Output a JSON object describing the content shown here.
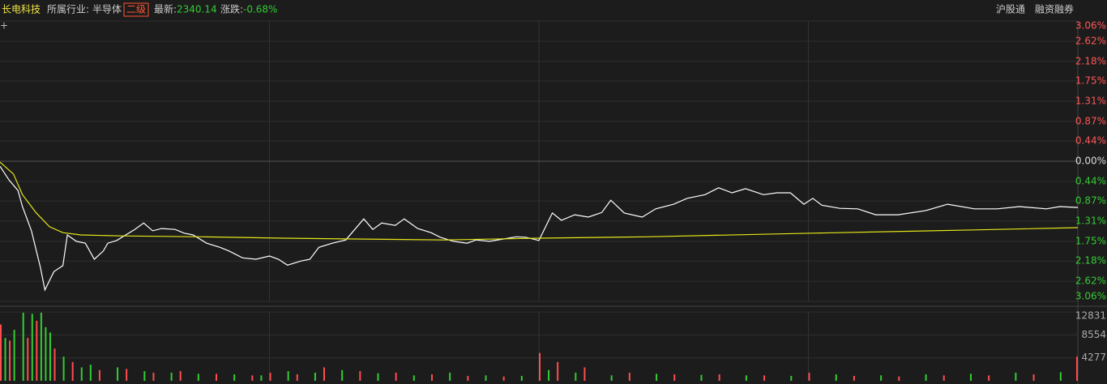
{
  "header": {
    "name": "长电科技",
    "industry_label": "所属行业:",
    "industry": "半导体",
    "level": "二级",
    "latest_label": "最新:",
    "latest": "2340.14",
    "change_label": "涨跌:",
    "change": "-0.68%",
    "links": [
      "沪股通",
      "融资融券"
    ]
  },
  "chart_data": [
    {
      "type": "line",
      "xlim": [
        0,
        240
      ],
      "ylim": [
        -3.06,
        3.06
      ],
      "yticks": [
        {
          "value": 3.06,
          "label": "3.06%"
        },
        {
          "value": 2.62,
          "label": "2.62%"
        },
        {
          "value": 2.18,
          "label": "2.18%"
        },
        {
          "value": 1.75,
          "label": "1.75%"
        },
        {
          "value": 1.31,
          "label": "1.31%"
        },
        {
          "value": 0.87,
          "label": "0.87%"
        },
        {
          "value": 0.44,
          "label": "0.44%"
        },
        {
          "value": 0,
          "label": "0.00%"
        },
        {
          "value": -0.44,
          "label": "0.44%"
        },
        {
          "value": -0.87,
          "label": "0.87%"
        },
        {
          "value": -1.31,
          "label": "1.31%"
        },
        {
          "value": -1.75,
          "label": "1.75%"
        },
        {
          "value": -2.18,
          "label": "2.18%"
        },
        {
          "value": -2.62,
          "label": "2.62%"
        },
        {
          "value": -3.06,
          "label": "3.06%"
        }
      ],
      "grid": true,
      "series": [
        {
          "color": "#ffffff",
          "x": [
            0,
            2,
            4,
            5,
            7,
            9,
            10,
            12,
            14,
            15,
            17,
            19,
            21,
            23,
            24,
            26,
            28,
            30,
            32,
            34,
            36,
            39,
            41,
            43,
            46,
            49,
            51,
            54,
            57,
            60,
            62,
            64,
            67,
            69,
            71,
            74,
            77,
            79,
            81,
            83,
            85,
            88,
            90,
            93,
            96,
            98,
            101,
            104,
            106,
            109,
            112,
            115,
            117,
            120,
            123,
            125,
            128,
            131,
            134,
            136,
            139,
            143,
            146,
            150,
            153,
            157,
            160,
            163,
            166,
            170,
            173,
            176,
            179,
            181,
            183,
            187,
            191,
            195,
            200,
            206,
            211,
            217,
            222,
            227,
            233,
            236,
            240
          ],
          "values": [
            -0.11,
            -0.41,
            -0.64,
            -0.99,
            -1.52,
            -2.32,
            -2.81,
            -2.41,
            -2.28,
            -1.61,
            -1.75,
            -1.79,
            -2.14,
            -1.96,
            -1.79,
            -1.73,
            -1.61,
            -1.49,
            -1.35,
            -1.52,
            -1.47,
            -1.49,
            -1.57,
            -1.61,
            -1.79,
            -1.88,
            -1.96,
            -2.11,
            -2.14,
            -2.07,
            -2.14,
            -2.27,
            -2.18,
            -2.14,
            -1.88,
            -1.79,
            -1.72,
            -1.49,
            -1.26,
            -1.49,
            -1.35,
            -1.4,
            -1.26,
            -1.47,
            -1.56,
            -1.66,
            -1.75,
            -1.79,
            -1.72,
            -1.75,
            -1.7,
            -1.65,
            -1.66,
            -1.73,
            -1.13,
            -1.29,
            -1.17,
            -1.22,
            -1.12,
            -0.85,
            -1.13,
            -1.22,
            -1.04,
            -0.94,
            -0.81,
            -0.73,
            -0.58,
            -0.69,
            -0.6,
            -0.73,
            -0.69,
            -0.69,
            -0.94,
            -0.81,
            -0.96,
            -1.03,
            -1.04,
            -1.17,
            -1.17,
            -1.08,
            -0.94,
            -1.04,
            -1.04,
            -0.99,
            -1.04,
            -0.99,
            -1.01
          ]
        },
        {
          "color": "#e6e619",
          "x": [
            0,
            3,
            5,
            8,
            11,
            14,
            18,
            27,
            45,
            63,
            81,
            99,
            120,
            144,
            181,
            217,
            240
          ],
          "values": [
            -0.02,
            -0.28,
            -0.73,
            -1.12,
            -1.43,
            -1.56,
            -1.61,
            -1.63,
            -1.65,
            -1.68,
            -1.7,
            -1.72,
            -1.68,
            -1.65,
            -1.57,
            -1.5,
            -1.45
          ]
        }
      ]
    },
    {
      "type": "bar",
      "xlim": [
        0,
        240
      ],
      "ylim": [
        0,
        13000
      ],
      "yticks": [
        4277,
        8554,
        12831
      ],
      "grid": true,
      "series": [
        {
          "color": "#ff4d4d",
          "x": [
            0,
            2,
            6,
            8,
            12,
            16,
            22,
            28,
            34,
            40,
            48,
            56,
            60,
            66,
            72,
            80,
            88,
            96,
            104,
            112,
            120,
            124,
            130,
            140,
            150,
            160,
            170,
            180,
            190,
            200,
            210,
            220,
            230,
            240
          ],
          "values": [
            10500,
            7500,
            8000,
            11200,
            6000,
            3500,
            2000,
            2200,
            1500,
            1800,
            1300,
            1000,
            1500,
            1200,
            2500,
            1800,
            1500,
            1200,
            900,
            800,
            5200,
            3500,
            2500,
            1500,
            1200,
            1200,
            1000,
            1500,
            900,
            800,
            1000,
            1000,
            1200,
            4500
          ]
        },
        {
          "color": "#33cc33",
          "x": [
            1,
            3,
            5,
            7,
            9,
            10,
            11,
            14,
            18,
            20,
            26,
            32,
            38,
            44,
            52,
            58,
            64,
            70,
            76,
            84,
            92,
            100,
            108,
            116,
            122,
            128,
            136,
            146,
            156,
            166,
            176,
            186,
            196,
            206,
            216,
            226,
            236
          ],
          "values": [
            8000,
            9500,
            12700,
            12500,
            12700,
            10000,
            9000,
            4500,
            2500,
            3000,
            2500,
            1800,
            1500,
            1300,
            1200,
            1000,
            1800,
            1500,
            2000,
            1400,
            1000,
            1500,
            1000,
            900,
            2000,
            1500,
            1000,
            1300,
            1100,
            1000,
            900,
            1200,
            1000,
            1200,
            1300,
            1500,
            1600
          ]
        }
      ]
    }
  ]
}
